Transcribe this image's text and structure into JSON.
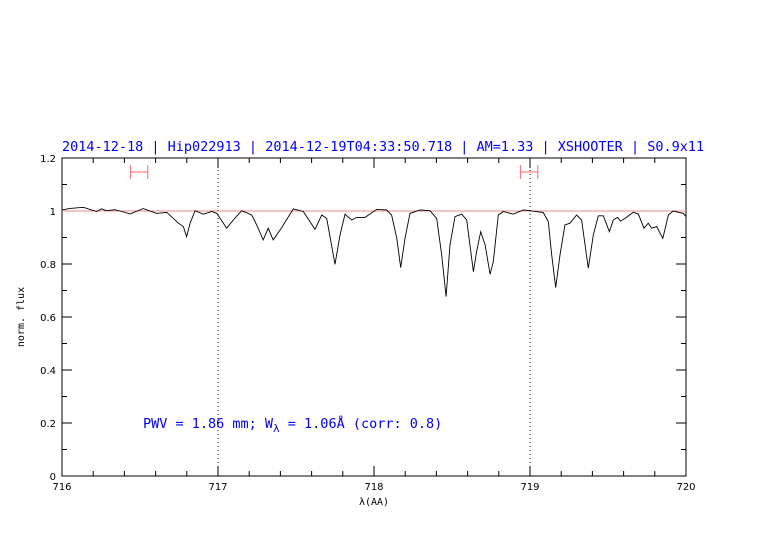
{
  "chart_data": {
    "type": "line",
    "title": "2014-12-18 | Hip022913 | 2014-12-19T04:33:50.718 | AM=1.33 | XSHOOTER | S0.9x11",
    "xlabel": "λ(AA)",
    "ylabel": "norm. flux",
    "xlim": [
      716,
      720
    ],
    "ylim": [
      0,
      1.2
    ],
    "xticks": [
      "716",
      "717",
      "718",
      "719",
      "720"
    ],
    "yticks": [
      "0",
      "0.2",
      "0.4",
      "0.6",
      "0.8",
      "1",
      "1.2"
    ],
    "annotation": {
      "prefix": "PWV = 1.86 mm; W",
      "sub": "λ",
      "suffix": " = 1.06Å (corr: 0.8)"
    },
    "reference_level": 1.0,
    "vertical_markers": [
      717,
      719
    ],
    "range_markers": [
      {
        "from": 716.44,
        "to": 716.55,
        "y": 1.147
      },
      {
        "from": 718.94,
        "to": 719.05,
        "y": 1.147
      }
    ],
    "colors": {
      "title": "#0000ff",
      "spectrum": "#000000",
      "reference": "#ee8888",
      "range": "#ff6666"
    },
    "series": [
      {
        "x": [
          716.0,
          716.051,
          716.137,
          716.222,
          716.254,
          716.286,
          716.34,
          716.383,
          716.436,
          716.521,
          716.607,
          716.671,
          716.746,
          716.778,
          716.799,
          716.821,
          716.853,
          716.906,
          716.96,
          716.992,
          717.056,
          717.098,
          717.152,
          717.216,
          717.248,
          717.29,
          717.322,
          717.354,
          717.408,
          717.483,
          717.547,
          717.622,
          717.665,
          717.697,
          717.75,
          717.782,
          717.814,
          717.857,
          717.889,
          717.942,
          718.017,
          718.081,
          718.113,
          718.146,
          718.171,
          718.199,
          718.231,
          718.295,
          718.359,
          718.402,
          718.434,
          718.462,
          718.487,
          718.519,
          718.562,
          718.594,
          718.637,
          718.658,
          718.684,
          718.712,
          718.744,
          718.765,
          718.797,
          718.829,
          718.893,
          718.957,
          719.0,
          719.085,
          719.117,
          719.139,
          719.165,
          719.192,
          719.224,
          719.256,
          719.299,
          719.331,
          719.374,
          719.406,
          719.438,
          719.47,
          719.509,
          719.534,
          719.56,
          719.581,
          719.609,
          719.662,
          719.694,
          719.731,
          719.758,
          719.78,
          719.812,
          719.851,
          719.887,
          719.918,
          719.983,
          720.0
        ],
        "y": [
          1.004,
          1.01,
          1.014,
          0.998,
          1.008,
          1.001,
          1.005,
          0.998,
          0.989,
          1.009,
          0.991,
          0.995,
          0.954,
          0.941,
          0.903,
          0.954,
          1.001,
          0.988,
          0.998,
          0.991,
          0.935,
          0.966,
          1.001,
          0.985,
          0.947,
          0.891,
          0.935,
          0.891,
          0.937,
          1.008,
          0.998,
          0.931,
          0.985,
          0.972,
          0.799,
          0.909,
          0.988,
          0.966,
          0.976,
          0.976,
          1.006,
          1.004,
          0.985,
          0.897,
          0.786,
          0.897,
          0.991,
          1.004,
          1.001,
          0.972,
          0.834,
          0.677,
          0.872,
          0.979,
          0.988,
          0.966,
          0.771,
          0.846,
          0.922,
          0.872,
          0.761,
          0.809,
          0.985,
          0.998,
          0.988,
          1.004,
          1.001,
          0.994,
          0.96,
          0.834,
          0.711,
          0.834,
          0.947,
          0.954,
          0.985,
          0.966,
          0.784,
          0.909,
          0.982,
          0.982,
          0.922,
          0.966,
          0.976,
          0.962,
          0.972,
          0.995,
          0.989,
          0.935,
          0.954,
          0.935,
          0.941,
          0.897,
          0.985,
          1.0,
          0.991,
          0.979
        ]
      }
    ]
  }
}
